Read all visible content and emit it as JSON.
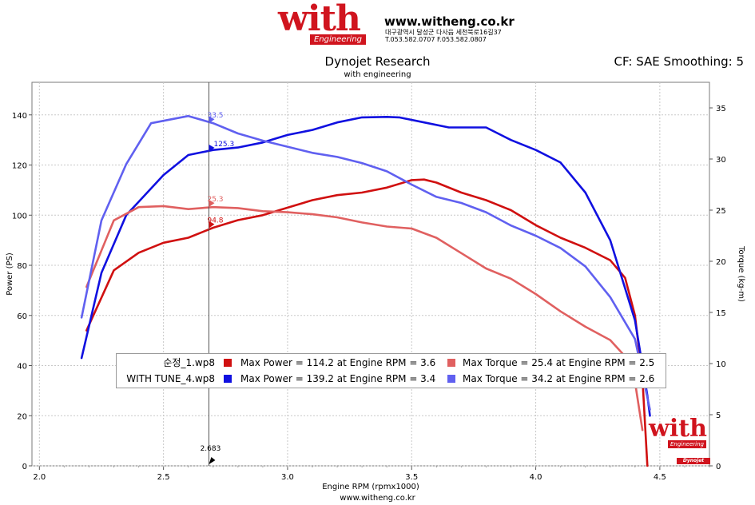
{
  "header": {
    "logo_word": "with",
    "logo_sub": "Engineering",
    "website": "www.witheng.co.kr",
    "address_line": "대구광역시 달성군 다사읍 세천북로16길37",
    "phone_line": "T.053.582.0707 F.053.582.0807"
  },
  "chart_title": "Dynojet Research",
  "chart_subtitle": "with engineering",
  "correction": "CF: SAE Smoothing: 5",
  "footer": "www.witheng.co.kr",
  "watermark": {
    "word": "with",
    "sub": "Engineering"
  },
  "dynojet_logo": "Dynojet",
  "legend": [
    {
      "run": "순정_1.wp8",
      "power_text": "Max Power = 114.2 at Engine RPM = 3.6",
      "torque_text": "Max Torque = 25.4 at Engine RPM = 2.5",
      "power_color": "#d01010",
      "torque_color": "#e06060"
    },
    {
      "run": "WITH TUNE_4.wp8",
      "power_text": "Max Power = 139.2 at Engine RPM = 3.4",
      "torque_text": "Max Torque = 34.2 at Engine RPM = 2.6",
      "power_color": "#1010e0",
      "torque_color": "#6060f0"
    }
  ],
  "chart_data": {
    "type": "line",
    "xlabel": "Engine RPM (rpmx1000)",
    "ylabel_left": "Power (PS)",
    "ylabel_right": "Torque (kg-m)",
    "xlim": [
      1.97,
      4.7
    ],
    "ylim_left": [
      0,
      153
    ],
    "ylim_right": [
      0,
      37.5
    ],
    "x_ticks": [
      "2.0",
      "2.5",
      "3.0",
      "3.5",
      "4.0",
      "4.5"
    ],
    "y_ticks_left": [
      "0",
      "20",
      "40",
      "60",
      "80",
      "100",
      "120",
      "140"
    ],
    "y_ticks_right": [
      "0",
      "5",
      "10",
      "15",
      "20",
      "25",
      "30",
      "35"
    ],
    "cursor": {
      "x": 2.683,
      "label": "2.683"
    },
    "cursor_labels": [
      {
        "text": "33.5",
        "axis": "right",
        "value": 33.5,
        "color": "#6060f0"
      },
      {
        "text": "125.3",
        "axis": "left",
        "value": 125.3,
        "color": "#1010e0"
      },
      {
        "text": "25.3",
        "axis": "right",
        "value": 25.3,
        "color": "#e06060"
      },
      {
        "text": "94.8",
        "axis": "left",
        "value": 94.8,
        "color": "#d01010"
      }
    ],
    "series": [
      {
        "name": "순정_1.wp8 Power",
        "axis": "left",
        "color": "#d01010",
        "x": [
          2.19,
          2.3,
          2.4,
          2.5,
          2.6,
          2.7,
          2.8,
          2.9,
          3.0,
          3.1,
          3.2,
          3.3,
          3.4,
          3.5,
          3.55,
          3.6,
          3.7,
          3.8,
          3.9,
          4.0,
          4.1,
          4.2,
          4.3,
          4.36,
          4.4,
          4.43,
          4.45
        ],
        "y": [
          54,
          78,
          85,
          89,
          91,
          95,
          98,
          100,
          103,
          106,
          108,
          109,
          111,
          114,
          114.2,
          113,
          109,
          106,
          102,
          96,
          91,
          87,
          82,
          75,
          60,
          35,
          0
        ]
      },
      {
        "name": "WITH TUNE_4.wp8 Power",
        "axis": "left",
        "color": "#1010e0",
        "x": [
          2.17,
          2.25,
          2.35,
          2.5,
          2.6,
          2.7,
          2.8,
          2.9,
          3.0,
          3.1,
          3.2,
          3.3,
          3.4,
          3.45,
          3.55,
          3.65,
          3.7,
          3.8,
          3.9,
          4.0,
          4.1,
          4.2,
          4.3,
          4.4,
          4.45,
          4.46
        ],
        "y": [
          43,
          77,
          100,
          116,
          124,
          126,
          127,
          129,
          132,
          134,
          137,
          139,
          139.2,
          139,
          137,
          135,
          135,
          135,
          130,
          126,
          121,
          109,
          90,
          58,
          28,
          20
        ]
      },
      {
        "name": "순정_1.wp8 Torque",
        "axis": "right",
        "color": "#e06060",
        "x": [
          2.19,
          2.3,
          2.4,
          2.5,
          2.6,
          2.7,
          2.8,
          2.9,
          3.0,
          3.1,
          3.2,
          3.3,
          3.4,
          3.5,
          3.6,
          3.7,
          3.8,
          3.9,
          4.0,
          4.1,
          4.2,
          4.3,
          4.36,
          4.4,
          4.43
        ],
        "y": [
          17.5,
          24,
          25.3,
          25.4,
          25.1,
          25.3,
          25.2,
          24.9,
          24.8,
          24.6,
          24.3,
          23.8,
          23.4,
          23.2,
          22.3,
          20.8,
          19.3,
          18.3,
          16.8,
          15.1,
          13.6,
          12.3,
          10.7,
          8.2,
          3.5
        ]
      },
      {
        "name": "WITH TUNE_4.wp8 Torque",
        "axis": "right",
        "color": "#6060f0",
        "x": [
          2.17,
          2.25,
          2.35,
          2.45,
          2.6,
          2.7,
          2.8,
          2.9,
          3.0,
          3.1,
          3.2,
          3.3,
          3.4,
          3.5,
          3.6,
          3.7,
          3.8,
          3.9,
          4.0,
          4.1,
          4.2,
          4.3,
          4.4,
          4.46
        ],
        "y": [
          14.5,
          24,
          29.5,
          33.5,
          34.2,
          33.5,
          32.5,
          31.8,
          31.2,
          30.6,
          30.2,
          29.6,
          28.8,
          27.5,
          26.3,
          25.7,
          24.8,
          23.5,
          22.5,
          21.3,
          19.5,
          16.5,
          12.4,
          5.5
        ]
      }
    ]
  }
}
